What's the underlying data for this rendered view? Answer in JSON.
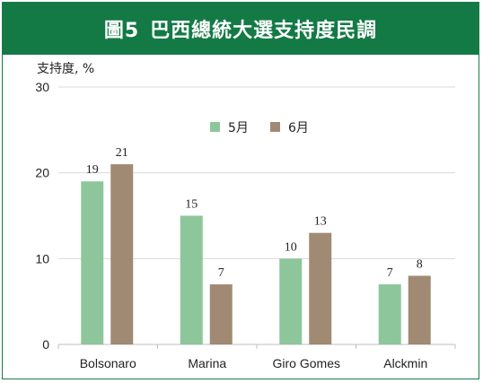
{
  "header": {
    "figure_label": "圖5",
    "title": "巴西總統大選支持度民調"
  },
  "colors": {
    "title_bg": "#137a45",
    "series_may": "#8dc69b",
    "series_june": "#a08a73",
    "grid": "#d9d9d9",
    "axis": "#bfbfbf"
  },
  "chart_data": {
    "type": "bar",
    "title": "巴西總統大選支持度民調",
    "ylabel": "支持度, %",
    "xlabel": "",
    "ylim": [
      0,
      30
    ],
    "yticks": [
      0,
      10,
      20,
      30
    ],
    "grid": true,
    "legend_position": "top-center",
    "categories": [
      "Bolsonaro",
      "Marina",
      "Giro Gomes",
      "Alckmin"
    ],
    "series": [
      {
        "name": "5月",
        "values": [
          19,
          15,
          10,
          7
        ]
      },
      {
        "name": "6月",
        "values": [
          21,
          7,
          13,
          8
        ]
      }
    ]
  }
}
